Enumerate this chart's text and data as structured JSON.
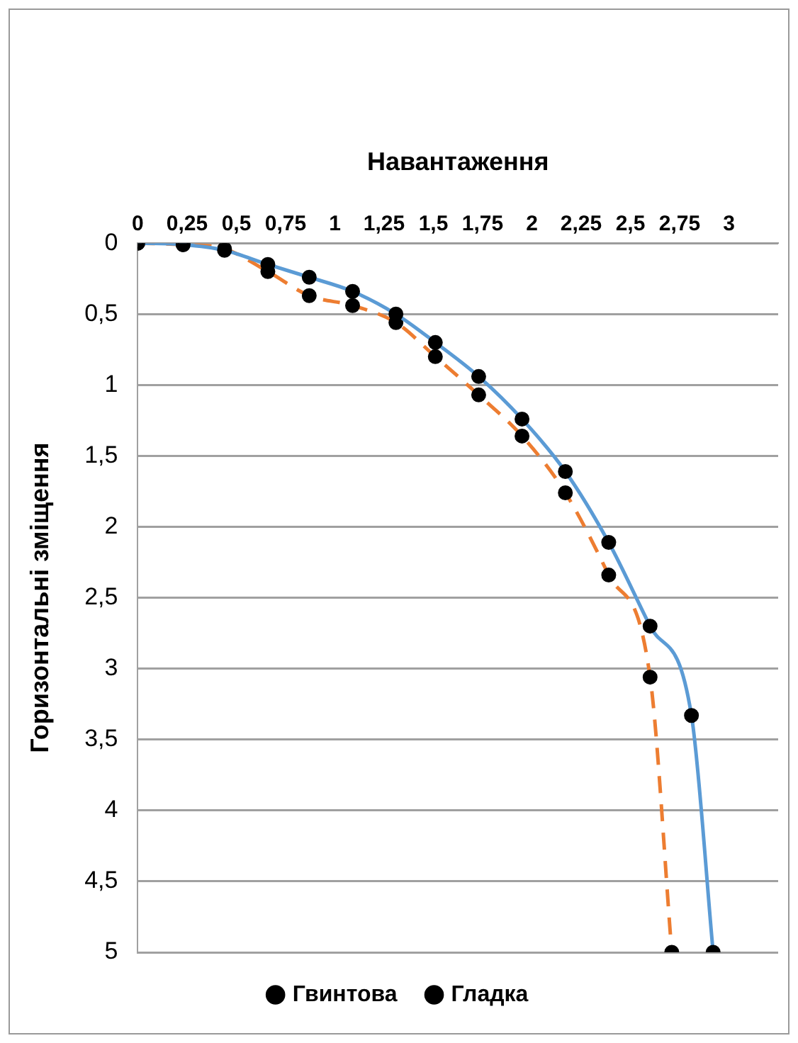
{
  "chart_data": {
    "type": "line",
    "xlabel": "Навантаження",
    "ylabel": "Горизонтальні зміщення",
    "xlim": [
      0,
      3.25
    ],
    "xticks": [
      {
        "value": 0,
        "label": "0"
      },
      {
        "value": 0.25,
        "label": "0,25"
      },
      {
        "value": 0.5,
        "label": "0,5"
      },
      {
        "value": 0.75,
        "label": "0,75"
      },
      {
        "value": 1,
        "label": "1"
      },
      {
        "value": 1.25,
        "label": "1,25"
      },
      {
        "value": 1.5,
        "label": "1,5"
      },
      {
        "value": 1.75,
        "label": "1,75"
      },
      {
        "value": 2,
        "label": "2"
      },
      {
        "value": 2.25,
        "label": "2,25"
      },
      {
        "value": 2.5,
        "label": "2,5"
      },
      {
        "value": 2.75,
        "label": "2,75"
      },
      {
        "value": 3,
        "label": "3"
      }
    ],
    "ylim": [
      5,
      0
    ],
    "yticks": [
      {
        "value": 0,
        "label": "0"
      },
      {
        "value": 0.5,
        "label": "0,5"
      },
      {
        "value": 1,
        "label": "1"
      },
      {
        "value": 1.5,
        "label": "1,5"
      },
      {
        "value": 2,
        "label": "2"
      },
      {
        "value": 2.5,
        "label": "2,5"
      },
      {
        "value": 3,
        "label": "3"
      },
      {
        "value": 3.5,
        "label": "3,5"
      },
      {
        "value": 4,
        "label": "4"
      },
      {
        "value": 4.5,
        "label": "4,5"
      },
      {
        "value": 5,
        "label": "5"
      }
    ],
    "grid": "y",
    "legend": "bottom",
    "marker": "circle",
    "series": [
      {
        "name": "Гвинтова",
        "color": "#5b9bd5",
        "line_style": "solid",
        "x": [
          0,
          0.23,
          0.44,
          0.66,
          0.87,
          1.09,
          1.31,
          1.51,
          1.73,
          1.95,
          2.17,
          2.39,
          2.6,
          2.81,
          2.92
        ],
        "values": [
          0,
          0.01,
          0.05,
          0.15,
          0.24,
          0.34,
          0.5,
          0.7,
          0.94,
          1.24,
          1.61,
          2.11,
          2.7,
          3.33,
          5
        ]
      },
      {
        "name": "Гладка",
        "color": "#ed7d31",
        "line_style": "dashed",
        "x": [
          0,
          0.23,
          0.44,
          0.66,
          0.87,
          1.09,
          1.31,
          1.51,
          1.73,
          1.95,
          2.17,
          2.39,
          2.6,
          2.71
        ],
        "values": [
          0,
          0.01,
          0.04,
          0.2,
          0.37,
          0.44,
          0.56,
          0.8,
          1.07,
          1.36,
          1.76,
          2.34,
          3.06,
          5
        ]
      }
    ]
  }
}
